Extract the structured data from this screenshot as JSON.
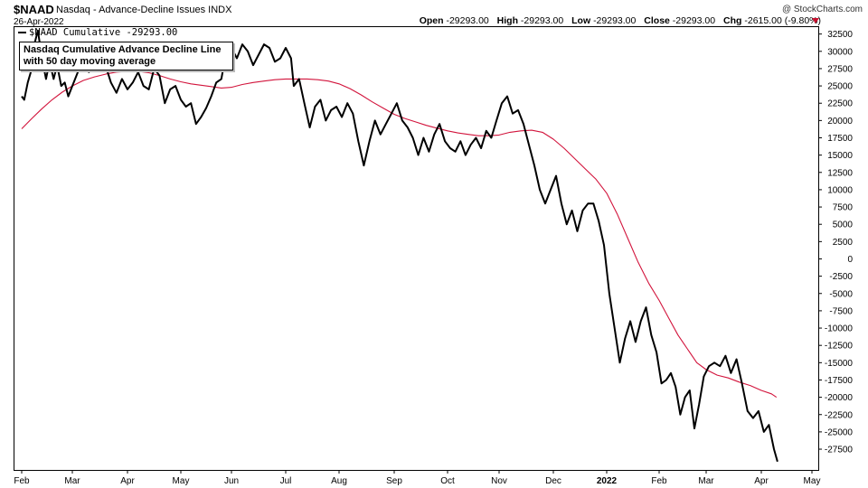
{
  "header": {
    "symbol": "$NAAD",
    "description": "Nasdaq - Advance-Decline Issues  INDX",
    "date": "26-Apr-2022",
    "copyright": "@ StockCharts.com",
    "open_label": "Open",
    "open": "-29293.00",
    "high_label": "High",
    "high": "-29293.00",
    "low_label": "Low",
    "low": "-29293.00",
    "close_label": "Close",
    "close": "-29293.00",
    "chg_label": "Chg",
    "chg": "-2615.00 (-9.80%)",
    "chg_color": "#c8102e"
  },
  "legend": {
    "label": "$NAAD Cumulative -29293.00"
  },
  "annotation": {
    "text_line1": "Nasdaq Cumulative Advance Decline Line",
    "text_line2": "with 50 day moving average"
  },
  "chart_data": {
    "type": "line",
    "x_tick_labels": [
      "Feb",
      "Mar",
      "Apr",
      "May",
      "Jun",
      "Jul",
      "Aug",
      "Sep",
      "Oct",
      "Nov",
      "Dec",
      "2022",
      "Feb",
      "Mar",
      "Apr",
      "May"
    ],
    "y_ticks": [
      32500,
      30000,
      27500,
      25000,
      22500,
      20000,
      17500,
      15000,
      12500,
      10000,
      7500,
      5000,
      2500,
      0,
      -2500,
      -5000,
      -7500,
      -10000,
      -12500,
      -15000,
      -17500,
      -20000,
      -22500,
      -25000,
      -27500
    ],
    "ylim": [
      -30500,
      33500
    ],
    "x_range_months": [
      0,
      15.45
    ],
    "series": [
      {
        "role": "price",
        "color": "#000000",
        "points": [
          [
            0,
            23500
          ],
          [
            0.05,
            23000
          ],
          [
            0.12,
            25500
          ],
          [
            0.2,
            27500
          ],
          [
            0.25,
            31000
          ],
          [
            0.32,
            33000
          ],
          [
            0.4,
            29000
          ],
          [
            0.48,
            26000
          ],
          [
            0.55,
            28500
          ],
          [
            0.63,
            26000
          ],
          [
            0.7,
            28000
          ],
          [
            0.78,
            25000
          ],
          [
            0.85,
            25500
          ],
          [
            0.92,
            23500
          ],
          [
            1,
            25000
          ],
          [
            1.1,
            27000
          ],
          [
            1.2,
            28500
          ],
          [
            1.3,
            27000
          ],
          [
            1.4,
            29500
          ],
          [
            1.5,
            30500
          ],
          [
            1.6,
            28000
          ],
          [
            1.7,
            25500
          ],
          [
            1.8,
            24000
          ],
          [
            1.9,
            26000
          ],
          [
            2,
            24500
          ],
          [
            2.1,
            25500
          ],
          [
            2.2,
            27000
          ],
          [
            2.3,
            25000
          ],
          [
            2.4,
            24500
          ],
          [
            2.5,
            27500
          ],
          [
            2.6,
            26500
          ],
          [
            2.7,
            22500
          ],
          [
            2.8,
            24500
          ],
          [
            2.9,
            25000
          ],
          [
            3,
            23000
          ],
          [
            3.1,
            22000
          ],
          [
            3.2,
            22500
          ],
          [
            3.3,
            19500
          ],
          [
            3.4,
            20500
          ],
          [
            3.5,
            21800
          ],
          [
            3.6,
            23500
          ],
          [
            3.7,
            25500
          ],
          [
            3.8,
            26000
          ],
          [
            3.9,
            30000
          ],
          [
            4,
            30500
          ],
          [
            4.1,
            29000
          ],
          [
            4.2,
            31000
          ],
          [
            4.3,
            30000
          ],
          [
            4.4,
            28000
          ],
          [
            4.5,
            29500
          ],
          [
            4.6,
            31000
          ],
          [
            4.7,
            30500
          ],
          [
            4.8,
            28500
          ],
          [
            4.9,
            29000
          ],
          [
            5,
            30500
          ],
          [
            5.1,
            29000
          ],
          [
            5.15,
            25000
          ],
          [
            5.25,
            26000
          ],
          [
            5.35,
            22500
          ],
          [
            5.45,
            19000
          ],
          [
            5.55,
            22000
          ],
          [
            5.65,
            23000
          ],
          [
            5.75,
            20000
          ],
          [
            5.85,
            21500
          ],
          [
            5.95,
            22000
          ],
          [
            6.05,
            20500
          ],
          [
            6.15,
            22500
          ],
          [
            6.25,
            21000
          ],
          [
            6.35,
            17000
          ],
          [
            6.45,
            13500
          ],
          [
            6.55,
            17000
          ],
          [
            6.65,
            20000
          ],
          [
            6.75,
            18000
          ],
          [
            6.85,
            19500
          ],
          [
            6.95,
            21000
          ],
          [
            7.05,
            22500
          ],
          [
            7.15,
            20000
          ],
          [
            7.25,
            19000
          ],
          [
            7.35,
            17500
          ],
          [
            7.45,
            15000
          ],
          [
            7.55,
            17500
          ],
          [
            7.65,
            15500
          ],
          [
            7.75,
            18000
          ],
          [
            7.85,
            19500
          ],
          [
            7.95,
            17000
          ],
          [
            8.05,
            16000
          ],
          [
            8.15,
            15500
          ],
          [
            8.25,
            17000
          ],
          [
            8.35,
            15000
          ],
          [
            8.45,
            16500
          ],
          [
            8.55,
            17500
          ],
          [
            8.65,
            16000
          ],
          [
            8.75,
            18500
          ],
          [
            8.85,
            17500
          ],
          [
            8.95,
            20000
          ],
          [
            9.05,
            22500
          ],
          [
            9.15,
            23500
          ],
          [
            9.25,
            21000
          ],
          [
            9.35,
            21500
          ],
          [
            9.45,
            19500
          ],
          [
            9.55,
            16500
          ],
          [
            9.65,
            13500
          ],
          [
            9.75,
            10000
          ],
          [
            9.85,
            8000
          ],
          [
            9.95,
            10000
          ],
          [
            10.05,
            12000
          ],
          [
            10.15,
            8000
          ],
          [
            10.25,
            5000
          ],
          [
            10.35,
            7000
          ],
          [
            10.45,
            4000
          ],
          [
            10.55,
            7000
          ],
          [
            10.65,
            8000
          ],
          [
            10.75,
            8000
          ],
          [
            10.85,
            5500
          ],
          [
            10.95,
            2000
          ],
          [
            11.05,
            -5000
          ],
          [
            11.15,
            -10000
          ],
          [
            11.25,
            -15000
          ],
          [
            11.35,
            -11500
          ],
          [
            11.45,
            -9000
          ],
          [
            11.55,
            -12000
          ],
          [
            11.65,
            -9000
          ],
          [
            11.75,
            -7000
          ],
          [
            11.85,
            -11000
          ],
          [
            11.95,
            -13500
          ],
          [
            12.05,
            -18000
          ],
          [
            12.15,
            -17500
          ],
          [
            12.25,
            -16500
          ],
          [
            12.35,
            -18500
          ],
          [
            12.45,
            -22500
          ],
          [
            12.55,
            -20000
          ],
          [
            12.65,
            -19000
          ],
          [
            12.75,
            -24500
          ],
          [
            12.85,
            -21000
          ],
          [
            12.95,
            -17000
          ],
          [
            13.05,
            -15500
          ],
          [
            13.15,
            -15000
          ],
          [
            13.25,
            -15500
          ],
          [
            13.35,
            -14000
          ],
          [
            13.45,
            -16500
          ],
          [
            13.55,
            -14500
          ],
          [
            13.65,
            -18000
          ],
          [
            13.75,
            -22000
          ],
          [
            13.85,
            -23000
          ],
          [
            13.95,
            -22000
          ],
          [
            14.05,
            -25000
          ],
          [
            14.15,
            -24000
          ],
          [
            14.25,
            -27500
          ],
          [
            14.32,
            -29293
          ]
        ]
      },
      {
        "role": "ma50",
        "color": "#d2143c",
        "points": [
          [
            0,
            18800
          ],
          [
            0.2,
            20300
          ],
          [
            0.4,
            21700
          ],
          [
            0.6,
            23000
          ],
          [
            0.8,
            24100
          ],
          [
            1,
            25000
          ],
          [
            1.2,
            25800
          ],
          [
            1.4,
            26300
          ],
          [
            1.6,
            26700
          ],
          [
            1.8,
            27000
          ],
          [
            2,
            27100
          ],
          [
            2.2,
            27100
          ],
          [
            2.4,
            26900
          ],
          [
            2.6,
            26500
          ],
          [
            2.8,
            26000
          ],
          [
            3,
            25600
          ],
          [
            3.2,
            25300
          ],
          [
            3.4,
            25100
          ],
          [
            3.6,
            24900
          ],
          [
            3.8,
            24700
          ],
          [
            4,
            24800
          ],
          [
            4.2,
            25200
          ],
          [
            4.4,
            25500
          ],
          [
            4.6,
            25700
          ],
          [
            4.8,
            25900
          ],
          [
            5,
            26000
          ],
          [
            5.2,
            26000
          ],
          [
            5.4,
            26000
          ],
          [
            5.6,
            25900
          ],
          [
            5.8,
            25700
          ],
          [
            6,
            25300
          ],
          [
            6.2,
            24600
          ],
          [
            6.4,
            23700
          ],
          [
            6.6,
            22700
          ],
          [
            6.8,
            21800
          ],
          [
            7,
            20900
          ],
          [
            7.2,
            20300
          ],
          [
            7.4,
            19800
          ],
          [
            7.6,
            19300
          ],
          [
            7.8,
            18900
          ],
          [
            8,
            18500
          ],
          [
            8.2,
            18200
          ],
          [
            8.4,
            18000
          ],
          [
            8.6,
            17800
          ],
          [
            8.8,
            17800
          ],
          [
            9,
            17900
          ],
          [
            9.2,
            18300
          ],
          [
            9.4,
            18500
          ],
          [
            9.6,
            18600
          ],
          [
            9.8,
            18300
          ],
          [
            10,
            17300
          ],
          [
            10.2,
            16000
          ],
          [
            10.4,
            14500
          ],
          [
            10.6,
            13000
          ],
          [
            10.8,
            11500
          ],
          [
            11,
            9500
          ],
          [
            11.2,
            6500
          ],
          [
            11.4,
            3000
          ],
          [
            11.6,
            -500
          ],
          [
            11.8,
            -3500
          ],
          [
            12,
            -6000
          ],
          [
            12.2,
            -8500
          ],
          [
            12.4,
            -11000
          ],
          [
            12.6,
            -13000
          ],
          [
            12.8,
            -15000
          ],
          [
            13,
            -16000
          ],
          [
            13.2,
            -16800
          ],
          [
            13.4,
            -17200
          ],
          [
            13.6,
            -17800
          ],
          [
            13.8,
            -18300
          ],
          [
            14,
            -19000
          ],
          [
            14.2,
            -19500
          ],
          [
            14.3,
            -20000
          ]
        ]
      }
    ]
  }
}
